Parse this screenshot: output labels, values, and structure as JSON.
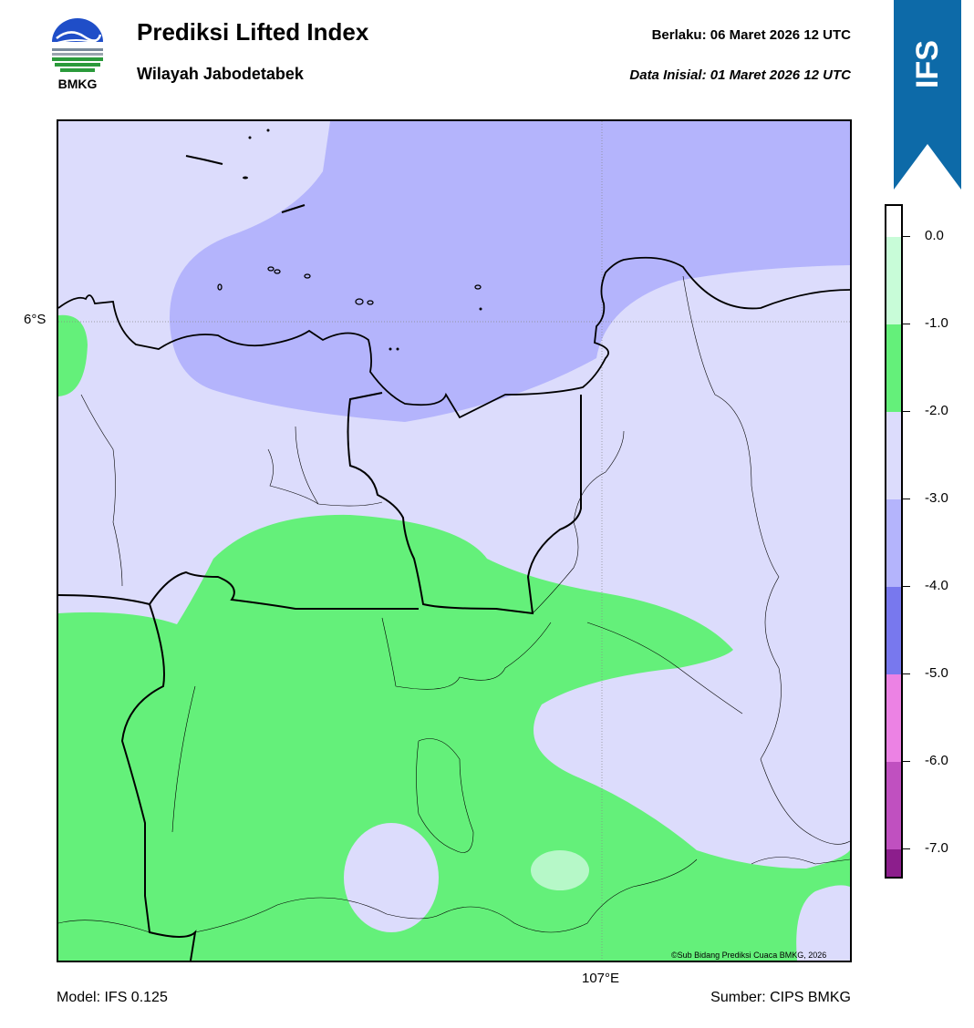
{
  "header": {
    "title": "Prediksi Lifted Index",
    "region": "Wilayah Jabodetabek",
    "valid_time": "Berlaku:  06 Maret 2026 12 UTC",
    "initial_time": "Data Inisial:  01 Maret 2026 12 UTC"
  },
  "logo": {
    "text": "BMKG",
    "icon": "bmkg-logo-icon"
  },
  "ribbon": {
    "text": "IFS",
    "color": "#0d6aa8"
  },
  "map": {
    "lat_label": "6°S",
    "lon_label": "107°E",
    "copyright": "©Sub Bidang Prediksi Cuaca BMKG, 2026",
    "colors": {
      "very_light_lavender": "#dcdcfc",
      "lavender": "#b4b4fc",
      "green": "#64f07a",
      "light_green": "#b6f8c8"
    }
  },
  "footer": {
    "model": "Model: IFS 0.125",
    "source": "Sumber: CIPS BMKG"
  },
  "colorbar": {
    "ticks": [
      "0.0",
      "-1.0",
      "-2.0",
      "-3.0",
      "-4.0",
      "-5.0",
      "-6.0",
      "-7.0"
    ],
    "segments": [
      {
        "color": "#ffffff"
      },
      {
        "color": "#c8fcd8"
      },
      {
        "color": "#64f07a"
      },
      {
        "color": "#dcdcfc"
      },
      {
        "color": "#b4b4fc"
      },
      {
        "color": "#7878ee"
      },
      {
        "color": "#ec82e4"
      },
      {
        "color": "#c050c0"
      },
      {
        "color": "#8c1e8c"
      }
    ]
  }
}
